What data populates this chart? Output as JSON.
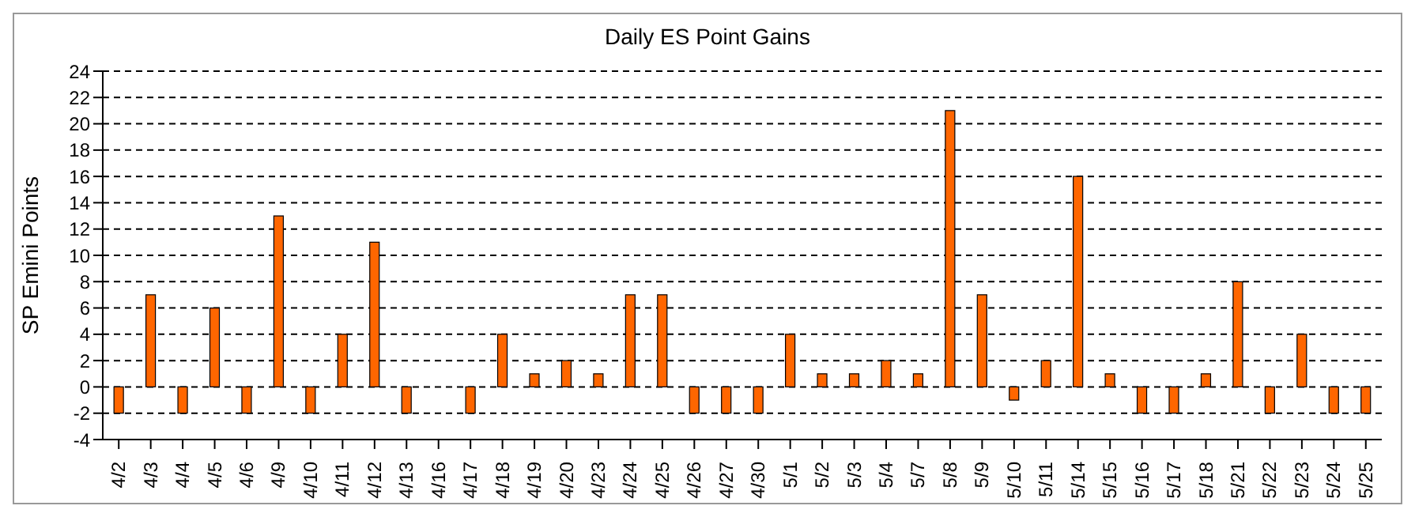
{
  "chart_data": {
    "type": "bar",
    "title": "Daily ES Point Gains",
    "ylabel": "SP Emini Points",
    "categories": [
      "4/2",
      "4/3",
      "4/4",
      "4/5",
      "4/6",
      "4/9",
      "4/10",
      "4/11",
      "4/12",
      "4/13",
      "4/16",
      "4/17",
      "4/18",
      "4/19",
      "4/20",
      "4/23",
      "4/24",
      "4/25",
      "4/26",
      "4/27",
      "4/30",
      "5/1",
      "5/2",
      "5/3",
      "5/4",
      "5/7",
      "5/8",
      "5/9",
      "5/10",
      "5/11",
      "5/14",
      "5/15",
      "5/16",
      "5/17",
      "5/18",
      "5/21",
      "5/22",
      "5/23",
      "5/24",
      "5/25"
    ],
    "series": [
      {
        "color": "#ff6600",
        "values": [
          -2,
          7,
          -2,
          6,
          -2,
          13,
          -2,
          4,
          11,
          -2,
          0,
          -2,
          4,
          1,
          2,
          1,
          7,
          7,
          -2,
          -2,
          -2,
          4,
          1,
          1,
          2,
          1,
          21,
          7,
          -1,
          2,
          16,
          1,
          -2,
          -2,
          1,
          8,
          -2,
          4,
          -2,
          -2
        ]
      }
    ],
    "ylim": [
      -4,
      24
    ],
    "yticks": [
      -4,
      -2,
      0,
      2,
      4,
      6,
      8,
      10,
      12,
      14,
      16,
      18,
      20,
      22,
      24
    ],
    "grid": "y",
    "legend": false
  }
}
